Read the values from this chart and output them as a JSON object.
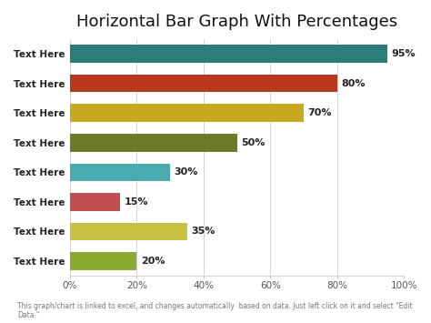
{
  "title": "Horizontal Bar Graph With Percentages",
  "categories": [
    "Text Here",
    "Text Here",
    "Text Here",
    "Text Here",
    "Text Here",
    "Text Here",
    "Text Here",
    "Text Here"
  ],
  "values": [
    95,
    80,
    70,
    50,
    30,
    15,
    35,
    20
  ],
  "colors": [
    "#2b7d7a",
    "#b8391e",
    "#c8a820",
    "#6b7a2a",
    "#4aacb0",
    "#c05050",
    "#c8c040",
    "#8aaa30"
  ],
  "footnote": "This graph/chart is linked to excel, and changes automatically  based on data. Just left click on it and select \"Edit Data.\"",
  "xlim": [
    0,
    100
  ],
  "xticks": [
    0,
    20,
    40,
    60,
    80,
    100
  ],
  "xtick_labels": [
    "0%",
    "20%",
    "40%",
    "60%",
    "80%",
    "100%"
  ],
  "title_fontsize": 13,
  "label_fontsize": 7.5,
  "value_fontsize": 8,
  "footnote_fontsize": 5.5,
  "bg_color": "#ffffff",
  "bar_height": 0.6
}
